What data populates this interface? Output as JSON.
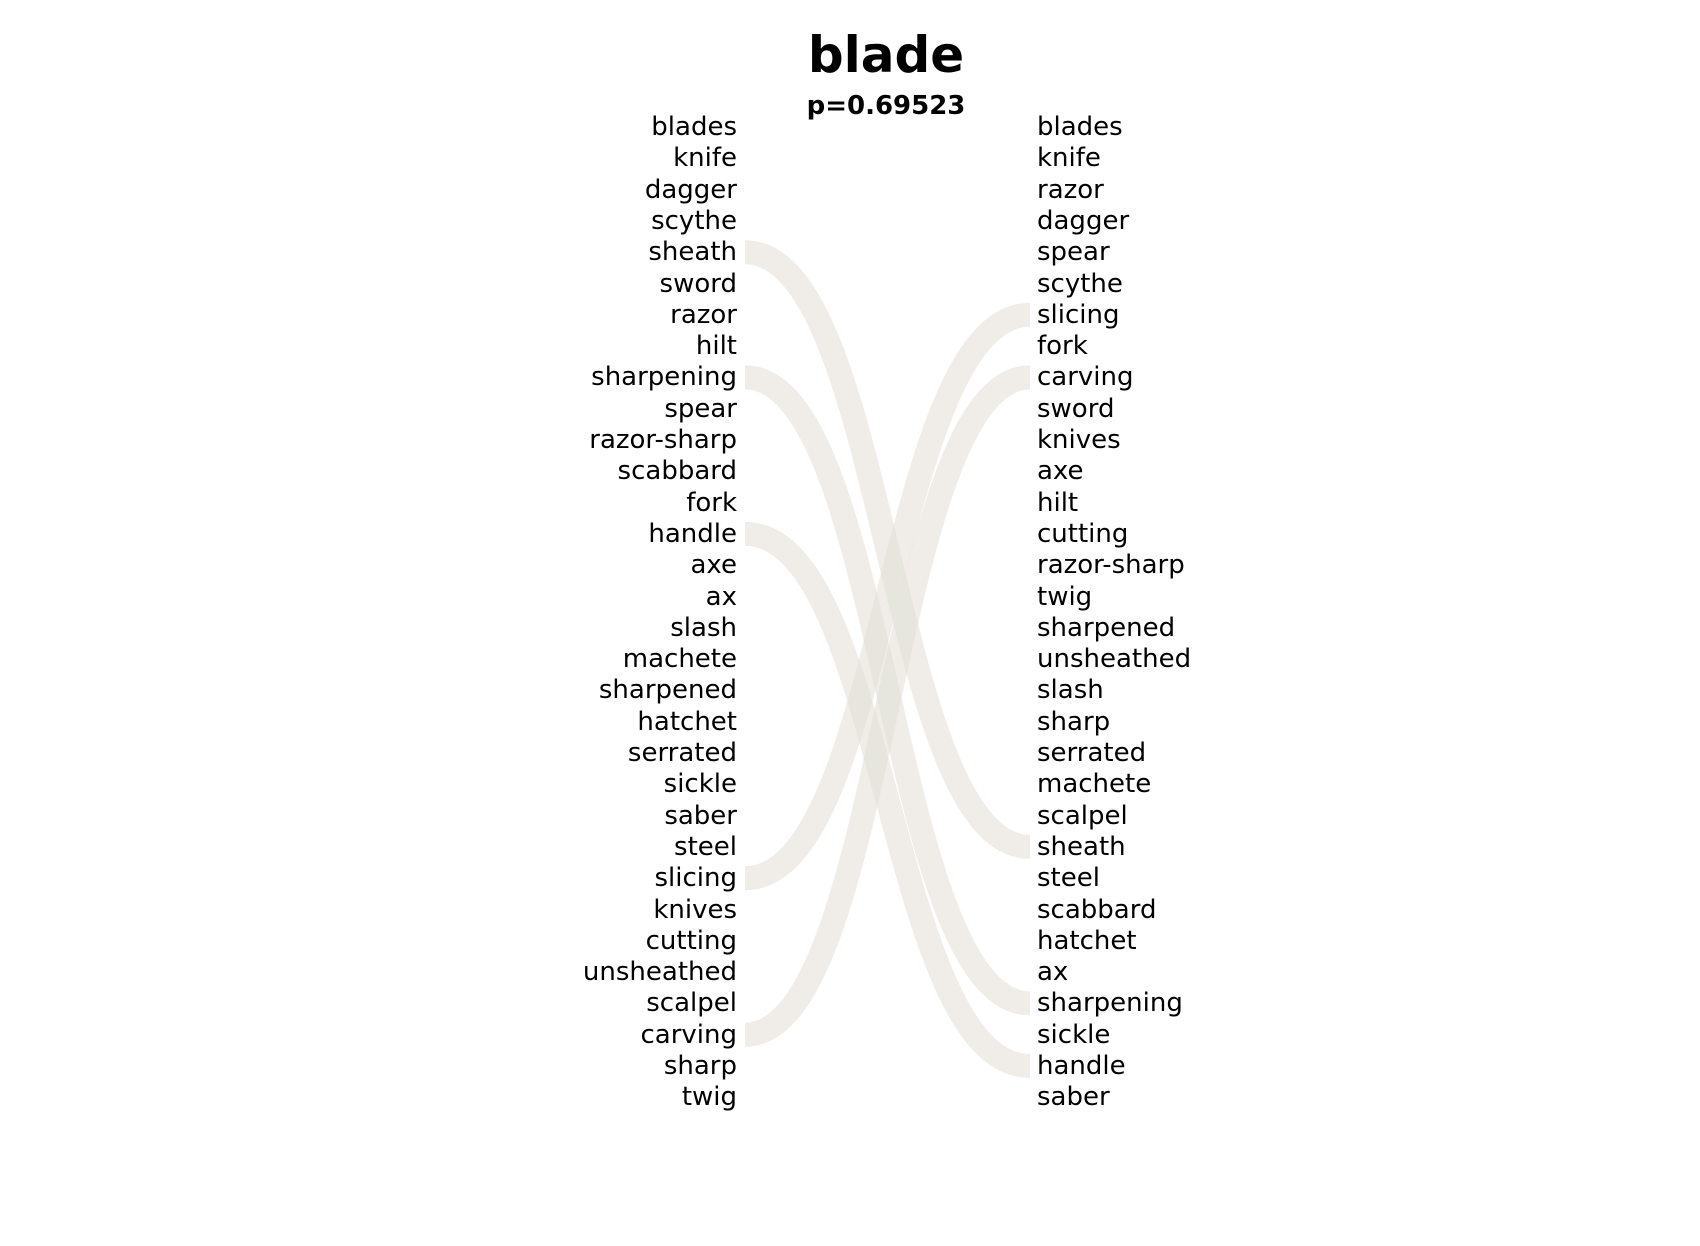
{
  "title": "blade",
  "subtitle": "p=0.69523",
  "colors": {
    "left_ribbon": "#f8c8c8",
    "right_ribbon": "#cfe6d6"
  },
  "left_words": [
    "blades",
    "knife",
    "dagger",
    "scythe",
    "sheath",
    "sword",
    "razor",
    "hilt",
    "sharpening",
    "spear",
    "razor-sharp",
    "scabbard",
    "fork",
    "handle",
    "axe",
    "ax",
    "slash",
    "machete",
    "sharpened",
    "hatchet",
    "serrated",
    "sickle",
    "saber",
    "steel",
    "slicing",
    "knives",
    "cutting",
    "unsheathed",
    "scalpel",
    "carving",
    "sharp",
    "twig"
  ],
  "right_words": [
    "blades",
    "knife",
    "razor",
    "dagger",
    "spear",
    "scythe",
    "slicing",
    "fork",
    "carving",
    "sword",
    "knives",
    "axe",
    "hilt",
    "cutting",
    "razor-sharp",
    "twig",
    "sharpened",
    "unsheathed",
    "slash",
    "sharp",
    "serrated",
    "machete",
    "scalpel",
    "sheath",
    "steel",
    "scabbard",
    "hatchet",
    "ax",
    "sharpening",
    "sickle",
    "handle",
    "saber"
  ],
  "links": [
    {
      "from": "sheath",
      "to": "sheath",
      "side": "left"
    },
    {
      "from": "sharpening",
      "to": "sharpening",
      "side": "left"
    },
    {
      "from": "handle",
      "to": "handle",
      "side": "left"
    },
    {
      "from": "slicing",
      "to": "slicing",
      "side": "left"
    },
    {
      "from": "carving",
      "to": "carving",
      "side": "left"
    },
    {
      "from": "slicing",
      "to": "slicing",
      "side": "right"
    },
    {
      "from": "carving",
      "to": "carving",
      "side": "right"
    },
    {
      "from": "sheath",
      "to": "sheath",
      "side": "right"
    },
    {
      "from": "sharpening",
      "to": "sharpening",
      "side": "right"
    },
    {
      "from": "handle",
      "to": "handle",
      "side": "right"
    }
  ]
}
